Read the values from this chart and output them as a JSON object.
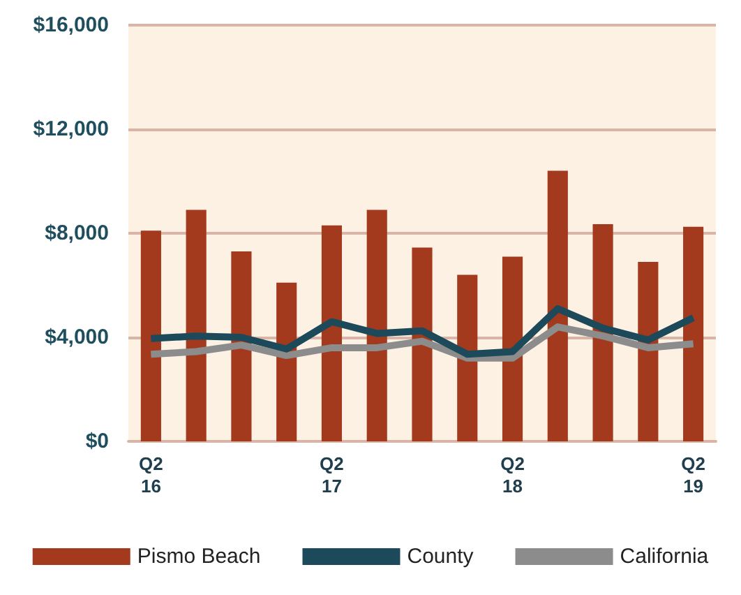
{
  "chart_data": {
    "type": "bar",
    "categories": [
      "Q2\n16",
      null,
      null,
      null,
      "Q2\n17",
      null,
      null,
      null,
      "Q2\n18",
      null,
      null,
      null,
      "Q2\n19"
    ],
    "series": [
      {
        "name": "Pismo Beach",
        "color": "#a33a1e",
        "values": [
          8100,
          8900,
          7300,
          6100,
          8300,
          8900,
          7450,
          6400,
          7100,
          10400,
          8350,
          6900,
          8250
        ]
      },
      {
        "name": "County",
        "type": "line",
        "color": "#1d4a5a",
        "values": [
          3950,
          4050,
          4000,
          3550,
          4600,
          4150,
          4250,
          3350,
          3450,
          5100,
          4350,
          3900,
          4750
        ]
      },
      {
        "name": "California",
        "type": "line",
        "color": "#8c8c8c",
        "values": [
          3350,
          3450,
          3700,
          3300,
          3600,
          3600,
          3850,
          3200,
          3200,
          4400,
          4050,
          3600,
          3750
        ]
      }
    ],
    "ylim": [
      0,
      16000
    ],
    "yticks": [
      {
        "value": 0,
        "label": "$0"
      },
      {
        "value": 4000,
        "label": "$4,000"
      },
      {
        "value": 8000,
        "label": "$8,000"
      },
      {
        "value": 12000,
        "label": "$12,000"
      },
      {
        "value": 16000,
        "label": "$16,000"
      }
    ],
    "grid": "y",
    "legend": "bottom",
    "marker": "none"
  }
}
